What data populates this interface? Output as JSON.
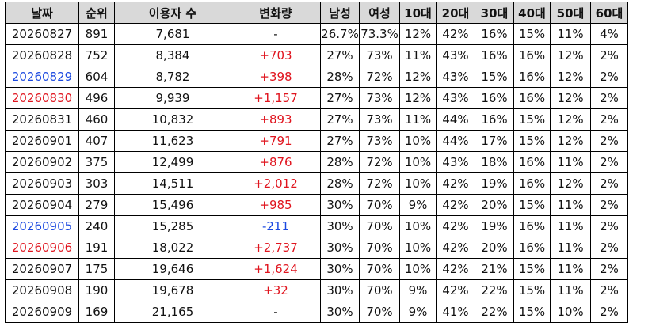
{
  "colors": {
    "header_bg": "#d9d9d9",
    "positive": "#e0141e",
    "negative": "#1a48e0",
    "saturday": "#1a48e0",
    "sunday": "#e0141e",
    "border": "#000000"
  },
  "table": {
    "headers": [
      "날짜",
      "순위",
      "이용자 수",
      "변화량",
      "남성",
      "여성",
      "10대",
      "20대",
      "30대",
      "40대",
      "50대",
      "60대"
    ],
    "rows": [
      {
        "date": "20260827",
        "date_color": "black",
        "rank": "891",
        "users": "7,681",
        "change": "-",
        "change_color": "black",
        "male": "26.7%",
        "female": "73.3%",
        "a10": "12%",
        "a20": "42%",
        "a30": "16%",
        "a40": "15%",
        "a50": "11%",
        "a60": "4%"
      },
      {
        "date": "20260828",
        "date_color": "black",
        "rank": "752",
        "users": "8,384",
        "change": "+703",
        "change_color": "red",
        "male": "27%",
        "female": "73%",
        "a10": "11%",
        "a20": "43%",
        "a30": "16%",
        "a40": "16%",
        "a50": "12%",
        "a60": "2%"
      },
      {
        "date": "20260829",
        "date_color": "blue",
        "rank": "604",
        "users": "8,782",
        "change": "+398",
        "change_color": "red",
        "male": "28%",
        "female": "72%",
        "a10": "12%",
        "a20": "43%",
        "a30": "15%",
        "a40": "16%",
        "a50": "12%",
        "a60": "2%"
      },
      {
        "date": "20260830",
        "date_color": "red",
        "rank": "496",
        "users": "9,939",
        "change": "+1,157",
        "change_color": "red",
        "male": "27%",
        "female": "73%",
        "a10": "12%",
        "a20": "43%",
        "a30": "16%",
        "a40": "16%",
        "a50": "12%",
        "a60": "2%"
      },
      {
        "date": "20260831",
        "date_color": "black",
        "rank": "460",
        "users": "10,832",
        "change": "+893",
        "change_color": "red",
        "male": "27%",
        "female": "73%",
        "a10": "11%",
        "a20": "44%",
        "a30": "16%",
        "a40": "15%",
        "a50": "12%",
        "a60": "2%"
      },
      {
        "date": "20260901",
        "date_color": "black",
        "rank": "407",
        "users": "11,623",
        "change": "+791",
        "change_color": "red",
        "male": "27%",
        "female": "73%",
        "a10": "10%",
        "a20": "44%",
        "a30": "17%",
        "a40": "15%",
        "a50": "12%",
        "a60": "2%"
      },
      {
        "date": "20260902",
        "date_color": "black",
        "rank": "375",
        "users": "12,499",
        "change": "+876",
        "change_color": "red",
        "male": "28%",
        "female": "72%",
        "a10": "10%",
        "a20": "43%",
        "a30": "18%",
        "a40": "16%",
        "a50": "11%",
        "a60": "2%"
      },
      {
        "date": "20260903",
        "date_color": "black",
        "rank": "303",
        "users": "14,511",
        "change": "+2,012",
        "change_color": "red",
        "male": "28%",
        "female": "72%",
        "a10": "10%",
        "a20": "42%",
        "a30": "19%",
        "a40": "16%",
        "a50": "12%",
        "a60": "2%"
      },
      {
        "date": "20260904",
        "date_color": "black",
        "rank": "279",
        "users": "15,496",
        "change": "+985",
        "change_color": "red",
        "male": "30%",
        "female": "70%",
        "a10": "9%",
        "a20": "42%",
        "a30": "20%",
        "a40": "15%",
        "a50": "11%",
        "a60": "2%"
      },
      {
        "date": "20260905",
        "date_color": "blue",
        "rank": "240",
        "users": "15,285",
        "change": "-211",
        "change_color": "blue",
        "male": "30%",
        "female": "70%",
        "a10": "10%",
        "a20": "42%",
        "a30": "19%",
        "a40": "16%",
        "a50": "11%",
        "a60": "2%"
      },
      {
        "date": "20260906",
        "date_color": "red",
        "rank": "191",
        "users": "18,022",
        "change": "+2,737",
        "change_color": "red",
        "male": "30%",
        "female": "70%",
        "a10": "10%",
        "a20": "42%",
        "a30": "20%",
        "a40": "16%",
        "a50": "11%",
        "a60": "2%"
      },
      {
        "date": "20260907",
        "date_color": "black",
        "rank": "175",
        "users": "19,646",
        "change": "+1,624",
        "change_color": "red",
        "male": "30%",
        "female": "70%",
        "a10": "10%",
        "a20": "42%",
        "a30": "21%",
        "a40": "15%",
        "a50": "11%",
        "a60": "2%"
      },
      {
        "date": "20260908",
        "date_color": "black",
        "rank": "190",
        "users": "19,678",
        "change": "+32",
        "change_color": "red",
        "male": "30%",
        "female": "70%",
        "a10": "9%",
        "a20": "42%",
        "a30": "22%",
        "a40": "15%",
        "a50": "11%",
        "a60": "2%"
      },
      {
        "date": "20260909",
        "date_color": "black",
        "rank": "169",
        "users": "21,165",
        "change": "-",
        "change_color": "black",
        "male": "30%",
        "female": "70%",
        "a10": "9%",
        "a20": "41%",
        "a30": "22%",
        "a40": "15%",
        "a50": "10%",
        "a60": "2%"
      }
    ]
  }
}
